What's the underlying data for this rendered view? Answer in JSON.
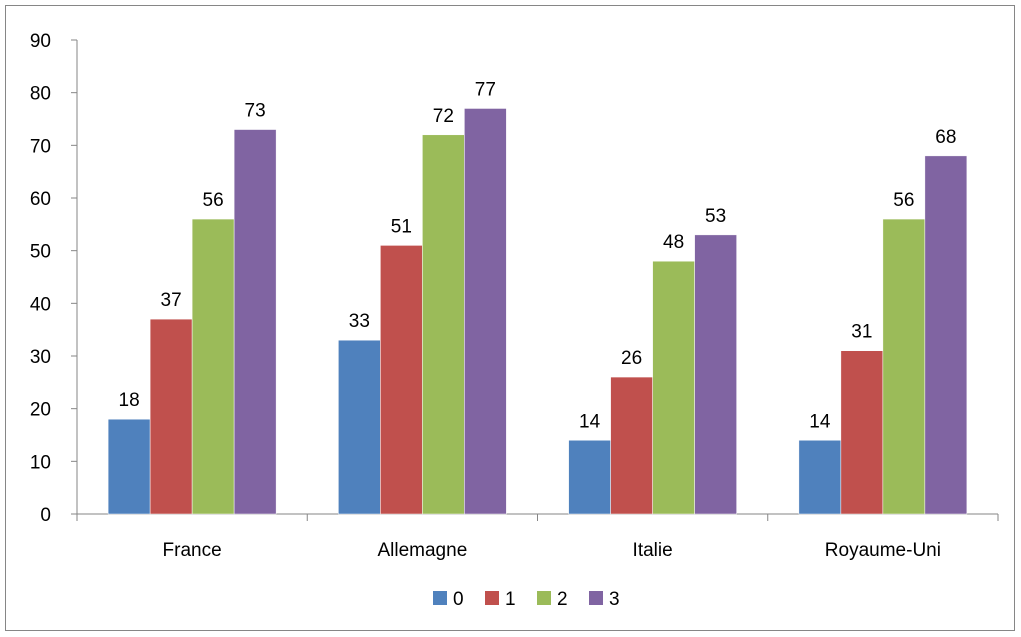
{
  "chart_data": {
    "type": "bar",
    "categories": [
      "France",
      "Allemagne",
      "Italie",
      "Royaume-Uni"
    ],
    "series": [
      {
        "name": "0",
        "values": [
          18,
          33,
          14,
          14
        ],
        "color": "#4F81BD"
      },
      {
        "name": "1",
        "values": [
          37,
          51,
          26,
          31
        ],
        "color": "#C0504D"
      },
      {
        "name": "2",
        "values": [
          56,
          72,
          48,
          56
        ],
        "color": "#9BBB59"
      },
      {
        "name": "3",
        "values": [
          73,
          77,
          53,
          68
        ],
        "color": "#8064A2"
      }
    ],
    "ylim": [
      0,
      90
    ],
    "yticks": [
      0,
      10,
      20,
      30,
      40,
      50,
      60,
      70,
      80,
      90
    ],
    "grid": false,
    "data_labels": true,
    "legend_position": "bottom"
  }
}
